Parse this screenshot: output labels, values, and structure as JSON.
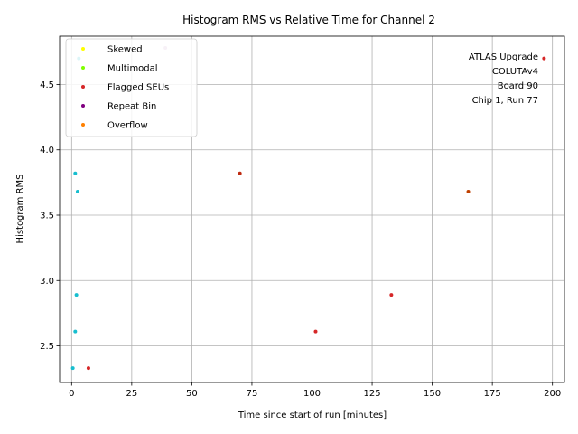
{
  "chart_data": {
    "type": "scatter",
    "title": "Histogram RMS vs Relative Time for Channel 2",
    "xlabel": "Time since start of run [minutes]",
    "ylabel": "Histogram RMS",
    "xlim": [
      -5,
      205
    ],
    "ylim": [
      2.22,
      4.87
    ],
    "xticks": [
      0,
      25,
      50,
      75,
      100,
      125,
      150,
      175,
      200
    ],
    "yticks": [
      2.5,
      3.0,
      3.5,
      4.0,
      4.5
    ],
    "xtick_labels": [
      "0",
      "25",
      "50",
      "75",
      "100",
      "125",
      "150",
      "175",
      "200"
    ],
    "ytick_labels": [
      "2.5",
      "3.0",
      "3.5",
      "4.0",
      "4.5"
    ],
    "grid": true,
    "legend_position": "top-left",
    "legend": [
      {
        "name": "Skewed",
        "color": "#ffff00"
      },
      {
        "name": "Multimodal",
        "color": "#80ff00"
      },
      {
        "name": "Flagged SEUs",
        "color": "#d62728"
      },
      {
        "name": "Repeat Bin",
        "color": "#800080"
      },
      {
        "name": "Overflow",
        "color": "#ff8000"
      }
    ],
    "annotation_lines": [
      "ATLAS Upgrade",
      "COLUTAv4",
      "Board 90",
      "Chip 1, Run 77"
    ],
    "points": [
      {
        "x": 0.5,
        "y": 2.33,
        "color": "#17becf"
      },
      {
        "x": 7.0,
        "y": 2.33,
        "color": "#d62728"
      },
      {
        "x": 1.5,
        "y": 2.61,
        "color": "#17becf"
      },
      {
        "x": 101.5,
        "y": 2.61,
        "color": "#d62728"
      },
      {
        "x": 2.0,
        "y": 2.89,
        "color": "#17becf"
      },
      {
        "x": 133.0,
        "y": 2.89,
        "color": "#d62728"
      },
      {
        "x": 2.5,
        "y": 3.68,
        "color": "#17becf"
      },
      {
        "x": 165.0,
        "y": 3.68,
        "color": "#bf4000"
      },
      {
        "x": 1.5,
        "y": 3.82,
        "color": "#17becf"
      },
      {
        "x": 70.0,
        "y": 3.82,
        "color": "#bf2a10"
      },
      {
        "x": 3.0,
        "y": 4.7,
        "color": "#17becf"
      },
      {
        "x": 196.5,
        "y": 4.7,
        "color": "#d62728"
      },
      {
        "x": 39.0,
        "y": 4.78,
        "color": "#c8a0c8"
      }
    ]
  }
}
